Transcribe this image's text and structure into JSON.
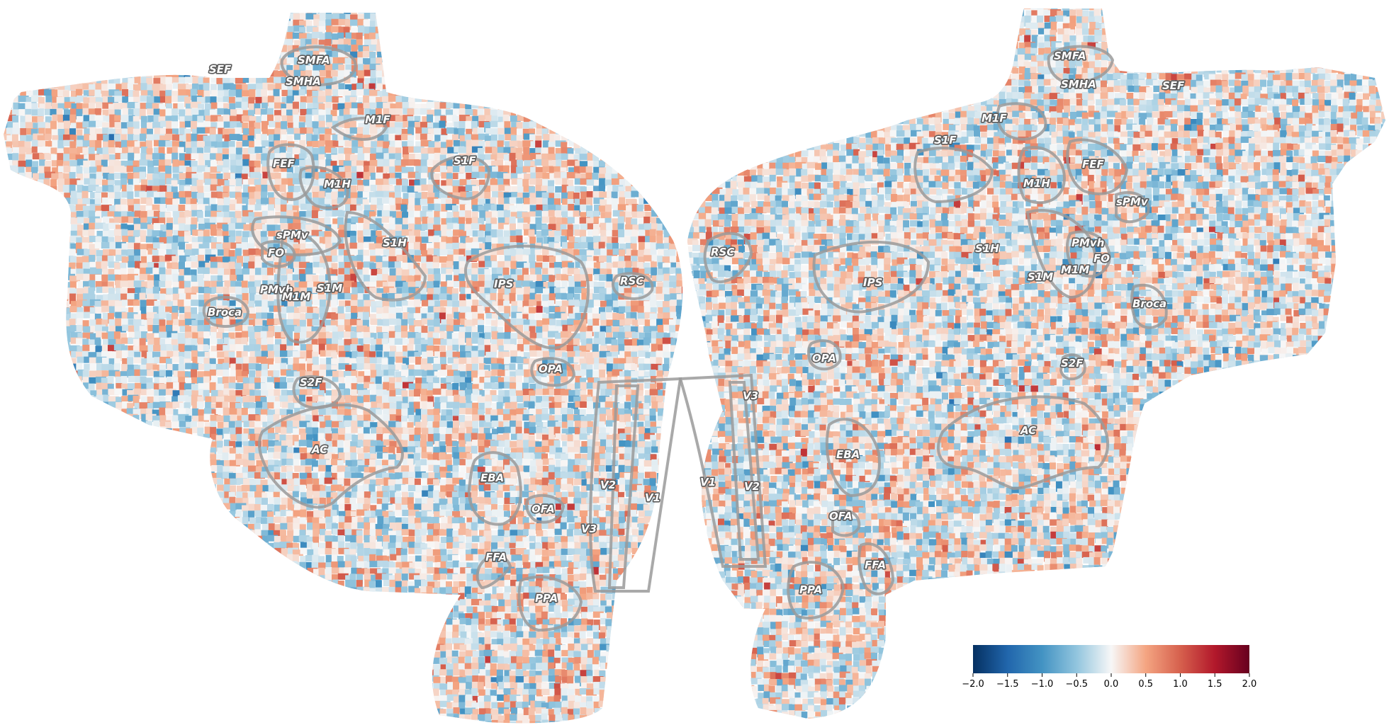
{
  "figure": {
    "colormap": "RdBu_r",
    "background": "#ffffff",
    "outline_color": "#9a9a9a"
  },
  "hemispheres": {
    "left": {
      "roi_labels": [
        "SEF",
        "SMFA",
        "SMHA",
        "M1F",
        "FEF",
        "M1H",
        "S1F",
        "sPMv",
        "S1H",
        "FO",
        "PMvh",
        "M1M",
        "S1M",
        "Broca",
        "IPS",
        "RSC",
        "OPA",
        "S2F",
        "AC",
        "EBA",
        "OFA",
        "V2",
        "V1",
        "V3",
        "FFA",
        "PPA"
      ]
    },
    "right": {
      "roi_labels": [
        "SMFA",
        "SMHA",
        "SEF",
        "M1F",
        "S1F",
        "FEF",
        "M1H",
        "sPMv",
        "RSC",
        "S1H",
        "PMvh",
        "FO",
        "M1M",
        "S1M",
        "IPS",
        "Broca",
        "OPA",
        "S2F",
        "V3",
        "AC",
        "EBA",
        "V1",
        "V2",
        "OFA",
        "FFA",
        "PPA"
      ]
    }
  },
  "colorbar": {
    "min": -2.0,
    "max": 2.0,
    "tick_labels": [
      "−2.0",
      "−1.5",
      "−1.0",
      "−0.5",
      "0.0",
      "0.5",
      "1.0",
      "1.5",
      "2.0"
    ],
    "colors": [
      "#053061",
      "#2166ac",
      "#4393c3",
      "#92c5de",
      "#f7f7f7",
      "#f4a582",
      "#d6604d",
      "#b2182b",
      "#67001f"
    ]
  }
}
